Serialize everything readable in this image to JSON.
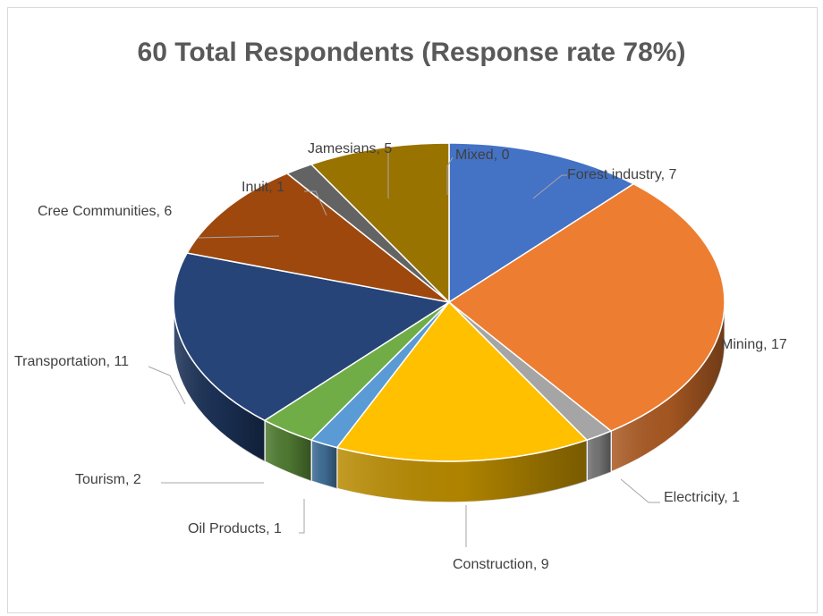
{
  "chart_data": {
    "type": "pie",
    "title": "60 Total Respondents (Response rate 78%)",
    "slices": [
      {
        "label": "Forest industry",
        "value": 7,
        "color": "#4472C4"
      },
      {
        "label": "Mining",
        "value": 17,
        "color": "#ED7D31"
      },
      {
        "label": "Electricity",
        "value": 1,
        "color": "#A5A5A5"
      },
      {
        "label": "Construction",
        "value": 9,
        "color": "#FFC000"
      },
      {
        "label": "Oil Products",
        "value": 1,
        "color": "#5B9BD5"
      },
      {
        "label": "Tourism",
        "value": 2,
        "color": "#70AD47"
      },
      {
        "label": "Transportation",
        "value": 11,
        "color": "#264478"
      },
      {
        "label": "Cree Communities",
        "value": 6,
        "color": "#9E480E"
      },
      {
        "label": "Inuit",
        "value": 1,
        "color": "#636363"
      },
      {
        "label": "Jamesians",
        "value": 5,
        "color": "#997300"
      },
      {
        "label": "Mixed",
        "value": 0,
        "color": "#4472C4"
      }
    ],
    "data_labels": [
      "Forest industry, 7",
      "Mining, 17",
      "Electricity, 1",
      "Construction, 9",
      "Oil Products, 1",
      "Tourism, 2",
      "Transportation, 11",
      "Cree Communities, 6",
      "Inuit, 1",
      "Jamesians, 5",
      "Mixed, 0"
    ],
    "legend": "none",
    "style": "3d-pie"
  }
}
